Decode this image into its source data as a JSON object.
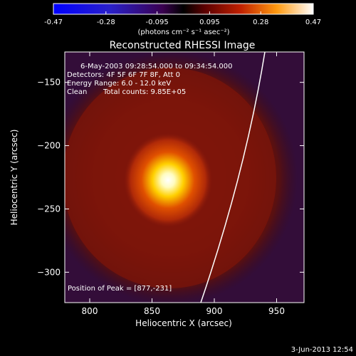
{
  "colorbar": {
    "ticks": [
      "-0.47",
      "-0.28",
      "-0.095",
      "0.095",
      "0.28",
      "0.47"
    ],
    "tick_values": [
      -0.47,
      -0.28,
      -0.095,
      0.095,
      0.28,
      0.47
    ],
    "range": [
      -0.47,
      0.47
    ],
    "units_label": "(photons cm⁻² s⁻¹ asec⁻²)"
  },
  "image": {
    "title": "Reconstructed RHESSI Image",
    "time_range": "6-May-2003 09:28:54.000 to 09:34:54.000",
    "detectors": "Detectors: 4F 5F 6F 7F 8F, Att 0",
    "energy_range": "Energy Range: 6.0 - 12.0 keV",
    "algorithm": "Clean",
    "total_counts": "Total counts: 9.85E+05",
    "peak_label": "Position of Peak = [877,-231]",
    "peak": {
      "x": 877,
      "y": -231
    }
  },
  "axes": {
    "xlabel": "Heliocentric X (arcsec)",
    "ylabel": "Heliocentric Y (arcsec)",
    "xlim": [
      780,
      972
    ],
    "ylim": [
      -324,
      -126
    ],
    "xticks": [
      800,
      850,
      900,
      950
    ],
    "xtick_labels": [
      "800",
      "850",
      "900",
      "950"
    ],
    "yticks": [
      -150,
      -200,
      -250,
      -300
    ],
    "ytick_labels": [
      "−150",
      "−200",
      "−250",
      "−300"
    ]
  },
  "footer": {
    "date": "3-Jun-2013 12:54"
  }
}
